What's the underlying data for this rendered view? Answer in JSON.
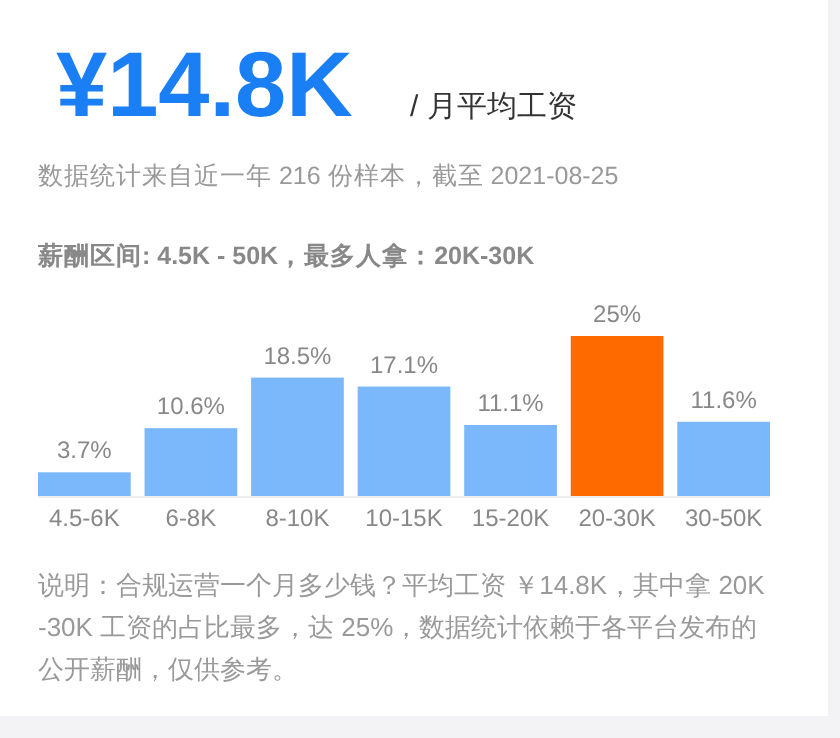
{
  "chart_data": {
    "type": "bar",
    "title": "¥14.8K",
    "subtitle": "/ 月平均工资",
    "annotations": [
      "数据统计来自近一年 216 份样本，截至 2021-08-25",
      "薪酬区间: 4.5K - 50K，最多人拿：20K-30K",
      "说明：合规运营一个月多少钱？平均工资 ￥14.8K，其中拿 20K-30K 工资的占比最多，达 25%，数据统计依赖于各平台发布的公开薪酬，仅供参考。"
    ],
    "categories": [
      "4.5-6K",
      "6-8K",
      "8-10K",
      "10-15K",
      "15-20K",
      "20-30K",
      "30-50K"
    ],
    "values": [
      3.7,
      10.6,
      18.5,
      17.1,
      11.1,
      25,
      11.6
    ],
    "value_labels": [
      "3.7%",
      "10.6%",
      "18.5%",
      "17.1%",
      "11.1%",
      "25%",
      "11.6%"
    ],
    "colors": [
      "#7ab8fb",
      "#7ab8fb",
      "#7ab8fb",
      "#7ab8fb",
      "#7ab8fb",
      "#ff6a00",
      "#7ab8fb"
    ]
  }
}
